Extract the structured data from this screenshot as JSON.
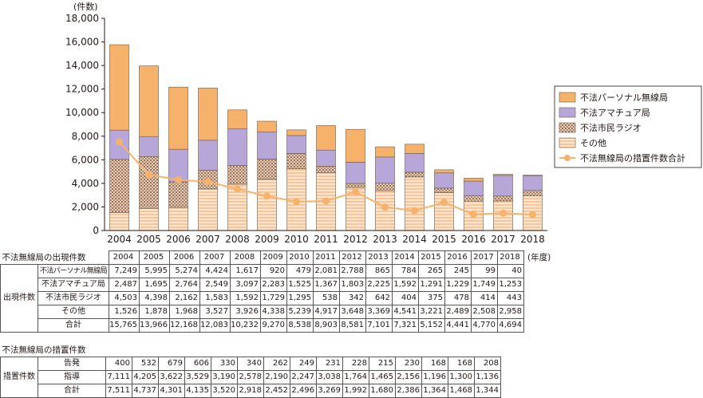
{
  "chart_data": {
    "type": "bar",
    "unit_label": "(件数)",
    "categories": [
      "2004",
      "2005",
      "2006",
      "2007",
      "2008",
      "2009",
      "2010",
      "2011",
      "2012",
      "2013",
      "2014",
      "2015",
      "2016",
      "2017",
      "2018"
    ],
    "ylim": [
      0,
      18000
    ],
    "yticks": [
      "0",
      "2,000",
      "4,000",
      "6,000",
      "8,000",
      "10,000",
      "12,000",
      "14,000",
      "16,000",
      "18,000"
    ],
    "series": [
      {
        "name": "その他",
        "values": [
          1526,
          1878,
          1968,
          3527,
          3926,
          4338,
          5239,
          4917,
          3648,
          3369,
          4541,
          3221,
          2489,
          2508,
          2958
        ],
        "color": "#f7c59a"
      },
      {
        "name": "不法市民ラジオ",
        "values": [
          4503,
          4398,
          2162,
          1583,
          1592,
          1729,
          1295,
          538,
          342,
          642,
          404,
          375,
          478,
          414,
          443
        ],
        "color": "#c8a183"
      },
      {
        "name": "不法アマチュア局",
        "values": [
          2487,
          1695,
          2764,
          2549,
          3097,
          2283,
          1525,
          1367,
          1803,
          2225,
          1592,
          1291,
          1229,
          1749,
          1253
        ],
        "color": "#b7a6d8"
      },
      {
        "name": "不法パーソナル無線局",
        "values": [
          7249,
          5995,
          5274,
          4424,
          1617,
          920,
          479,
          2081,
          2788,
          865,
          784,
          265,
          245,
          99,
          40
        ],
        "color": "#f6b26b"
      }
    ],
    "line": {
      "name": "不法無線局の措置件数合計",
      "values": [
        7511,
        4737,
        4301,
        4135,
        3520,
        2918,
        2452,
        2496,
        3269,
        1992,
        1680,
        2386,
        1364,
        1468,
        1344
      ],
      "color": "#f6b26b"
    },
    "legend_position": "right",
    "grid": false
  },
  "table": {
    "section1_title": "不法無線局の出現件数",
    "section2_title": "不法無線局の措置件数",
    "year_unit": "(年度)",
    "group1_label": "出現件数",
    "group2_label": "措置件数",
    "rows1": [
      {
        "label": "不法パーソナル無線局",
        "values": [
          "7,249",
          "5,995",
          "5,274",
          "4,424",
          "1,617",
          "920",
          "479",
          "2,081",
          "2,788",
          "865",
          "784",
          "265",
          "245",
          "99",
          "40"
        ]
      },
      {
        "label": "不法アマチュア局",
        "values": [
          "2,487",
          "1,695",
          "2,764",
          "2,549",
          "3,097",
          "2,283",
          "1,525",
          "1,367",
          "1,803",
          "2,225",
          "1,592",
          "1,291",
          "1,229",
          "1,749",
          "1,253"
        ]
      },
      {
        "label": "不法市民ラジオ",
        "values": [
          "4,503",
          "4,398",
          "2,162",
          "1,583",
          "1,592",
          "1,729",
          "1,295",
          "538",
          "342",
          "642",
          "404",
          "375",
          "478",
          "414",
          "443"
        ]
      },
      {
        "label": "その他",
        "values": [
          "1,526",
          "1,878",
          "1,968",
          "3,527",
          "3,926",
          "4,338",
          "5,239",
          "4,917",
          "3,648",
          "3,369",
          "4,541",
          "3,221",
          "2,489",
          "2,508",
          "2,958"
        ]
      },
      {
        "label": "合計",
        "values": [
          "15,765",
          "13,966",
          "12,168",
          "12,083",
          "10,232",
          "9,270",
          "8,538",
          "8,903",
          "8,581",
          "7,101",
          "7,321",
          "5,152",
          "4,441",
          "4,770",
          "4,694"
        ]
      }
    ],
    "rows2": [
      {
        "label": "告発",
        "values": [
          "400",
          "532",
          "679",
          "606",
          "330",
          "340",
          "262",
          "249",
          "231",
          "228",
          "215",
          "230",
          "168",
          "168",
          "208"
        ]
      },
      {
        "label": "指導",
        "values": [
          "7,111",
          "4,205",
          "3,622",
          "3,529",
          "3,190",
          "2,578",
          "2,190",
          "2,247",
          "3,038",
          "1,764",
          "1,465",
          "2,156",
          "1,196",
          "1,300",
          "1,136"
        ]
      },
      {
        "label": "合計",
        "values": [
          "7,511",
          "4,737",
          "4,301",
          "4,135",
          "3,520",
          "2,918",
          "2,452",
          "2,496",
          "3,269",
          "1,992",
          "1,680",
          "2,386",
          "1,364",
          "1,468",
          "1,344"
        ]
      }
    ]
  }
}
